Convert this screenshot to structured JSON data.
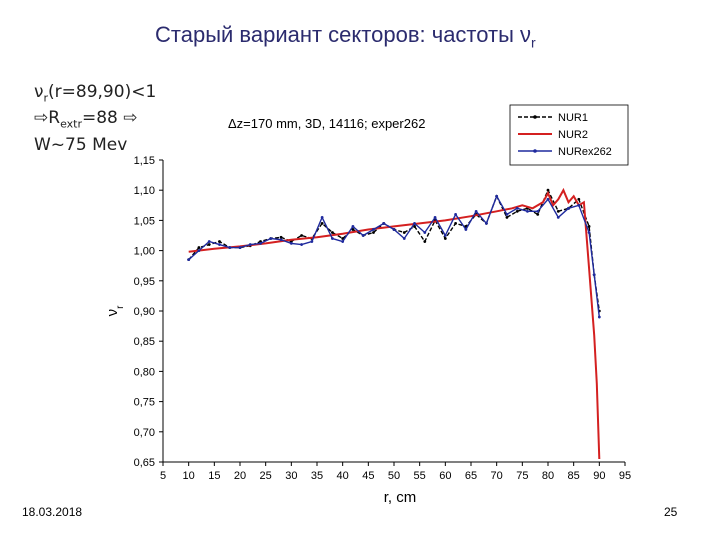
{
  "slide": {
    "title_main": "Старый вариант секторов: частоты ν",
    "title_sub": "r",
    "note_line1_a": "ν",
    "note_line1_sub": "r",
    "note_line1_b": "(r=89,90)<1",
    "note_line2_a": "⇨R",
    "note_line2_sub": "extr",
    "note_line2_b": "=88 ⇨",
    "note_line3": "W~75 Mev",
    "date": "18.03.2018",
    "page_number": "25"
  },
  "chart_data": {
    "type": "line",
    "title": "",
    "annotation": "Δz=170 mm, 3D, 14116; exper262",
    "xlabel": "r, cm",
    "ylabel": "ν",
    "ylabel_sub": "r",
    "xlim": [
      5,
      95
    ],
    "ylim": [
      0.65,
      1.15
    ],
    "xticks": [
      5,
      10,
      15,
      20,
      25,
      30,
      35,
      40,
      45,
      50,
      55,
      60,
      65,
      70,
      75,
      80,
      85,
      90,
      95
    ],
    "xtick_labels": [
      "5",
      "10",
      "15",
      "20",
      "25",
      "30",
      "35",
      "40",
      "45",
      "50",
      "55",
      "60",
      "65",
      "70",
      "75",
      "80",
      "85",
      "90",
      "95"
    ],
    "yticks": [
      1.15,
      1.1,
      1.05,
      1.0,
      0.95,
      0.9,
      0.85,
      0.8,
      0.75,
      0.7,
      0.65
    ],
    "ytick_labels": [
      "1,15",
      "1,10",
      "1,05",
      "1,00",
      "0,95",
      "0,90",
      "0,85",
      "0,80",
      "0,75",
      "0,70",
      "0,65"
    ],
    "grid": false,
    "legend_position": "top-right",
    "series": [
      {
        "name": "NUR1",
        "color": "#000000",
        "dash": "4,2",
        "marker": "dot",
        "x": [
          10,
          12,
          14,
          16,
          18,
          20,
          22,
          24,
          26,
          28,
          30,
          32,
          34,
          36,
          38,
          40,
          42,
          44,
          46,
          48,
          50,
          52,
          54,
          56,
          58,
          60,
          62,
          64,
          66,
          68,
          70,
          72,
          74,
          76,
          78,
          80,
          82,
          84,
          86,
          88,
          89,
          90
        ],
        "y": [
          0.985,
          1.005,
          1.01,
          1.015,
          1.005,
          1.005,
          1.008,
          1.015,
          1.02,
          1.022,
          1.015,
          1.025,
          1.02,
          1.045,
          1.03,
          1.02,
          1.035,
          1.025,
          1.03,
          1.045,
          1.035,
          1.03,
          1.04,
          1.015,
          1.05,
          1.02,
          1.045,
          1.04,
          1.06,
          1.045,
          1.09,
          1.055,
          1.065,
          1.07,
          1.06,
          1.1,
          1.065,
          1.07,
          1.085,
          1.04,
          0.96,
          0.9
        ]
      },
      {
        "name": "NUR2",
        "color": "#d42020",
        "dash": "",
        "marker": "none",
        "x": [
          10,
          15,
          20,
          25,
          30,
          35,
          40,
          45,
          50,
          55,
          60,
          65,
          70,
          73,
          75,
          77,
          79,
          80,
          81,
          82,
          83,
          84,
          85,
          86,
          87,
          88,
          89,
          89.5,
          90
        ],
        "y": [
          0.998,
          1.003,
          1.007,
          1.012,
          1.018,
          1.022,
          1.028,
          1.035,
          1.04,
          1.045,
          1.05,
          1.057,
          1.065,
          1.07,
          1.075,
          1.07,
          1.08,
          1.095,
          1.075,
          1.085,
          1.1,
          1.08,
          1.09,
          1.075,
          1.08,
          0.97,
          0.86,
          0.78,
          0.655
        ]
      },
      {
        "name": "NURex262",
        "color": "#1f2a9e",
        "dash": "",
        "marker": "dot",
        "x": [
          10,
          12,
          14,
          16,
          18,
          20,
          22,
          24,
          26,
          28,
          30,
          32,
          34,
          36,
          38,
          40,
          42,
          44,
          46,
          48,
          50,
          52,
          54,
          56,
          58,
          60,
          62,
          64,
          66,
          68,
          70,
          72,
          74,
          76,
          78,
          80,
          82,
          84,
          86,
          88,
          89,
          90
        ],
        "y": [
          0.985,
          1.0,
          1.015,
          1.01,
          1.005,
          1.005,
          1.01,
          1.012,
          1.02,
          1.018,
          1.012,
          1.01,
          1.015,
          1.055,
          1.02,
          1.015,
          1.04,
          1.025,
          1.035,
          1.045,
          1.035,
          1.02,
          1.045,
          1.03,
          1.055,
          1.025,
          1.06,
          1.035,
          1.065,
          1.045,
          1.09,
          1.06,
          1.07,
          1.065,
          1.065,
          1.085,
          1.055,
          1.07,
          1.075,
          1.03,
          0.96,
          0.89
        ]
      }
    ]
  }
}
